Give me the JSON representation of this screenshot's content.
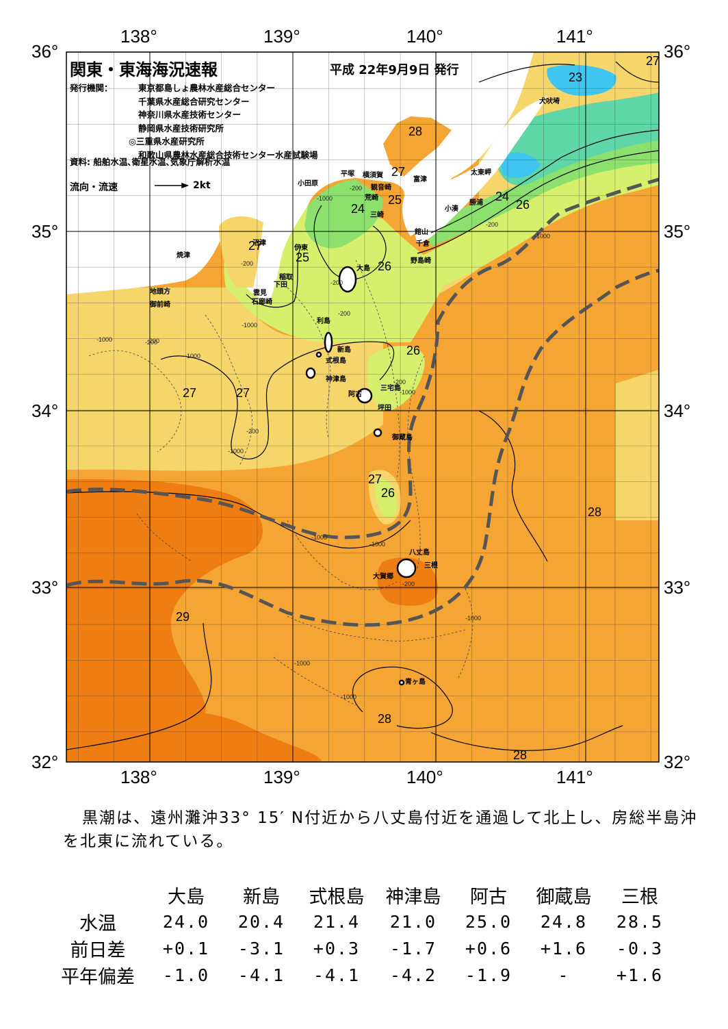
{
  "header": {
    "title": "関東・東海海況速報",
    "date": "平成 22年9月9日 発行",
    "issuer_label": "発行機関：",
    "issuers": [
      "東京都島しょ農林水産総合センター",
      "千葉県水産総合研究センター",
      "神奈川県水産技術センター",
      "静岡県水産技術研究所",
      "◎三重県水産研究所",
      "和歌山県農林水産総合技術センター水産試験場"
    ],
    "sources": "資料: 船舶水温､衛星水温､気象庁解析水温",
    "flow_label": "流向・流速",
    "flow_unit": "2kt"
  },
  "axes": {
    "lon_labels": [
      "138°",
      "139°",
      "140°",
      "141°"
    ],
    "lat_labels": [
      "36°",
      "35°",
      "34°",
      "33°",
      "32°"
    ]
  },
  "colors": {
    "t23": "#3fc6f0",
    "t24": "#5ed6a8",
    "t25": "#8ce06e",
    "t26": "#d6ef6c",
    "t27": "#f6d66a",
    "t28": "#f5a533",
    "t29": "#ee7d12",
    "land": "#ffffff",
    "kuroshio": "#555555"
  },
  "map": {
    "place_labels": [
      "犬吠埼",
      "太東岬",
      "勝浦",
      "小湊",
      "館山",
      "千倉",
      "野島崎",
      "富津",
      "観音崎",
      "横須賀",
      "平塚",
      "小田原",
      "荒崎",
      "三崎",
      "沼津",
      "伊東",
      "稲取",
      "下田",
      "雲見",
      "石廊崎",
      "焼津",
      "地頭方",
      "御前崎",
      "大島",
      "利島",
      "新島",
      "式根島",
      "神津島",
      "三宅島",
      "阿古",
      "坪田",
      "御蔵島",
      "八丈島",
      "三根",
      "大賀郷",
      "青ヶ島"
    ],
    "isotherm_labels": [
      "23",
      "27",
      "24",
      "26",
      "25",
      "24",
      "25",
      "28",
      "27",
      "26",
      "27",
      "27",
      "26",
      "27",
      "26",
      "28",
      "29",
      "28",
      "28",
      "26"
    ],
    "depth_labels": [
      "-1000",
      "-200",
      "-1000",
      "-200",
      "-200",
      "-1000",
      "-200",
      "-1000",
      "-200",
      "-1000",
      "-200",
      "-1000",
      "-1000",
      "-200",
      "-1000",
      "-1000",
      "-1000",
      "-200",
      "-1000",
      "-200",
      "-200",
      "-1000"
    ]
  },
  "summary": {
    "text": "黒潮は、遠州灘沖33° 15′ N付近から八丈島付近を通過して北上し、房総半島沖を北東に流れている。"
  },
  "table": {
    "columns": [
      "大島",
      "新島",
      "式根島",
      "神津島",
      "阿古",
      "御蔵島",
      "三根"
    ],
    "rows": [
      {
        "label": "水温",
        "values": [
          "24.0",
          "20.4",
          "21.4",
          "21.0",
          "25.0",
          "24.8",
          "28.5"
        ]
      },
      {
        "label": "前日差",
        "values": [
          "+0.1",
          "-3.1",
          "+0.3",
          "-1.7",
          "+0.6",
          "+1.6",
          "-0.3"
        ]
      },
      {
        "label": "平年偏差",
        "values": [
          "-1.0",
          "-4.1",
          "-4.1",
          "-4.2",
          "-1.9",
          "-",
          "+1.6"
        ]
      }
    ]
  }
}
